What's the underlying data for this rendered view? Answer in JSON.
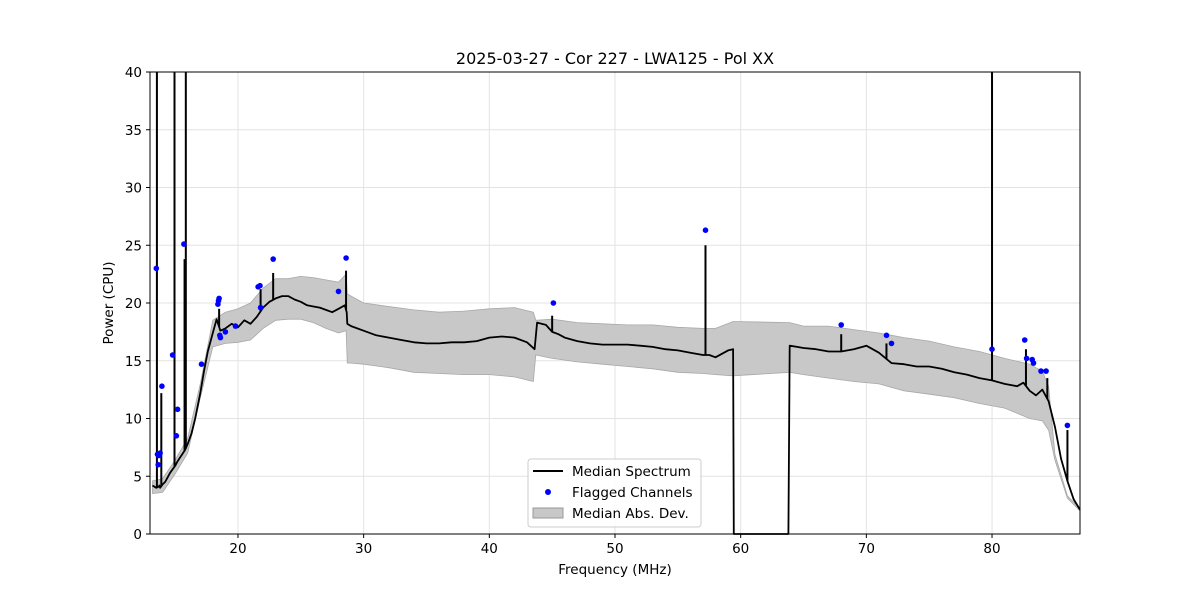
{
  "chart_data": {
    "type": "line",
    "title": "2025-03-27 - Cor 227 - LWA125 - Pol XX",
    "xlabel": "Frequency (MHz)",
    "ylabel": "Power (CPU)",
    "xlim": [
      13,
      87
    ],
    "ylim": [
      0,
      40
    ],
    "xticks": [
      20,
      30,
      40,
      50,
      60,
      70,
      80
    ],
    "yticks": [
      0,
      5,
      10,
      15,
      20,
      25,
      30,
      35,
      40
    ],
    "grid": true,
    "legend_position": "bottom-center",
    "legend": [
      {
        "label": "Median Spectrum",
        "kind": "line",
        "color": "#000000"
      },
      {
        "label": "Flagged Channels",
        "kind": "point",
        "color": "#0000ff"
      },
      {
        "label": "Median Abs. Dev.",
        "kind": "band",
        "color": "#c8c8c8"
      }
    ],
    "series": [
      {
        "name": "Median Spectrum",
        "x": [
          13.2,
          13.5,
          13.7,
          13.75,
          13.8,
          14.0,
          14.2,
          14.4,
          14.6,
          14.8,
          15.0,
          15.2,
          15.5,
          15.8,
          16.0,
          16.3,
          16.6,
          17.0,
          17.3,
          17.6,
          18.0,
          18.3,
          18.6,
          19.0,
          19.5,
          20.0,
          20.5,
          21.0,
          21.5,
          22.0,
          22.5,
          23.0,
          23.5,
          24.0,
          24.5,
          25.0,
          25.5,
          26.0,
          26.5,
          27.0,
          27.5,
          28.0,
          28.5,
          28.65,
          28.7,
          29.0,
          30.0,
          31.0,
          32.0,
          33.0,
          34.0,
          35.0,
          36.0,
          37.0,
          38.0,
          39.0,
          40.0,
          41.0,
          42.0,
          43.0,
          43.6,
          43.8,
          44.5,
          45.0,
          45.5,
          46.0,
          47.0,
          48.0,
          49.0,
          50.0,
          51.0,
          52.0,
          53.0,
          54.0,
          55.0,
          56.0,
          57.0,
          57.5,
          58.0,
          59.0,
          59.4,
          59.45,
          63.8,
          63.9,
          64.5,
          65.0,
          66.0,
          67.0,
          68.0,
          69.0,
          70.0,
          71.0,
          72.0,
          73.0,
          74.0,
          75.0,
          76.0,
          77.0,
          78.0,
          79.0,
          80.0,
          81.0,
          82.0,
          82.5,
          83.0,
          83.5,
          84.0,
          84.5,
          85.0,
          85.5,
          86.0,
          86.5,
          87.0
        ],
        "y": [
          4.2,
          4.0,
          4.1,
          4.2,
          4.0,
          4.3,
          4.5,
          4.9,
          5.3,
          5.6,
          5.9,
          6.3,
          6.8,
          7.3,
          7.8,
          8.7,
          10.0,
          12.2,
          14.1,
          15.8,
          17.4,
          18.6,
          17.6,
          17.8,
          18.2,
          17.9,
          18.5,
          18.2,
          18.8,
          19.6,
          20.1,
          20.4,
          20.6,
          20.6,
          20.3,
          20.1,
          19.8,
          19.7,
          19.6,
          19.4,
          19.2,
          19.5,
          19.8,
          19.2,
          18.2,
          18.0,
          17.6,
          17.2,
          17.0,
          16.8,
          16.6,
          16.5,
          16.5,
          16.6,
          16.6,
          16.7,
          17.0,
          17.1,
          17.0,
          16.6,
          16.0,
          18.3,
          18.1,
          17.5,
          17.3,
          17.0,
          16.7,
          16.5,
          16.4,
          16.4,
          16.4,
          16.3,
          16.2,
          16.0,
          15.9,
          15.7,
          15.5,
          15.5,
          15.3,
          15.9,
          16.0,
          0,
          0,
          16.3,
          16.2,
          16.1,
          16.0,
          15.8,
          15.8,
          16.0,
          16.3,
          15.7,
          14.8,
          14.7,
          14.5,
          14.5,
          14.3,
          14.0,
          13.8,
          13.5,
          13.3,
          13.0,
          12.8,
          13.1,
          12.4,
          12.0,
          12.5,
          11.5,
          9.3,
          6.5,
          4.6,
          3.0,
          2.1
        ]
      },
      {
        "name": "Median Abs. Dev.",
        "x": [
          13.2,
          14.0,
          15.0,
          16.0,
          17.0,
          18.0,
          19.0,
          20.0,
          21.0,
          22.0,
          23.0,
          24.0,
          25.0,
          26.0,
          27.0,
          28.0,
          28.6,
          28.7,
          29.0,
          30.0,
          32.0,
          34.0,
          36.0,
          38.0,
          40.0,
          42.0,
          43.5,
          43.7,
          45.0,
          47.0,
          49.0,
          51.0,
          53.0,
          55.0,
          57.0,
          58.0,
          59.4,
          63.9,
          65.0,
          67.0,
          69.0,
          71.0,
          73.0,
          75.0,
          77.0,
          79.0,
          81.0,
          83.0,
          84.0,
          84.5,
          85.0,
          86.0,
          87.0
        ],
        "upper": [
          4.6,
          4.8,
          6.4,
          8.3,
          13.0,
          18.5,
          19.2,
          19.5,
          20.0,
          21.3,
          22.1,
          22.1,
          22.3,
          22.2,
          22.0,
          21.8,
          22.5,
          20.8,
          20.6,
          20.0,
          19.7,
          19.4,
          19.2,
          19.3,
          19.5,
          19.6,
          19.2,
          18.5,
          18.6,
          18.3,
          18.2,
          18.1,
          18.1,
          17.9,
          17.8,
          17.8,
          18.4,
          18.3,
          18.0,
          18.0,
          17.7,
          17.4,
          17.0,
          16.7,
          16.2,
          15.8,
          15.2,
          14.7,
          14.1,
          12.8,
          6.9,
          3.3,
          2.2
        ],
        "lower": [
          3.5,
          3.6,
          5.2,
          7.0,
          11.8,
          16.2,
          16.5,
          16.6,
          16.8,
          17.8,
          18.5,
          18.6,
          18.6,
          18.3,
          17.8,
          17.4,
          17.6,
          14.8,
          14.8,
          14.7,
          14.4,
          14.0,
          13.9,
          13.8,
          13.8,
          13.6,
          13.2,
          15.5,
          15.2,
          14.9,
          14.7,
          14.5,
          14.3,
          14.0,
          13.9,
          13.8,
          13.7,
          14.0,
          13.8,
          13.5,
          13.2,
          13.0,
          12.4,
          12.1,
          11.8,
          11.3,
          10.9,
          10.0,
          9.8,
          9.0,
          6.4,
          3.1,
          2.0
        ]
      },
      {
        "name": "Spectral spikes",
        "peaks": [
          {
            "x": 13.55,
            "y": 40
          },
          {
            "x": 13.9,
            "y": 12.2
          },
          {
            "x": 14.95,
            "y": 40
          },
          {
            "x": 15.75,
            "y": 23.8
          },
          {
            "x": 15.85,
            "y": 40
          },
          {
            "x": 18.5,
            "y": 19.5
          },
          {
            "x": 21.8,
            "y": 21.2
          },
          {
            "x": 22.8,
            "y": 22.6
          },
          {
            "x": 28.6,
            "y": 22.8
          },
          {
            "x": 45.0,
            "y": 18.9
          },
          {
            "x": 57.2,
            "y": 25.0
          },
          {
            "x": 68.0,
            "y": 17.3
          },
          {
            "x": 71.6,
            "y": 16.5
          },
          {
            "x": 80.0,
            "y": 40
          },
          {
            "x": 82.7,
            "y": 16.0
          },
          {
            "x": 84.4,
            "y": 13.5
          },
          {
            "x": 86.0,
            "y": 9.0
          }
        ]
      },
      {
        "name": "Flagged Channels",
        "x": [
          13.5,
          13.6,
          13.65,
          13.7,
          13.8,
          13.95,
          14.8,
          15.1,
          15.2,
          15.7,
          17.1,
          18.4,
          18.45,
          18.5,
          18.55,
          18.6,
          19.0,
          19.8,
          21.6,
          21.75,
          21.8,
          22.8,
          28.0,
          28.6,
          45.1,
          57.2,
          68.0,
          71.6,
          72.0,
          80.0,
          82.6,
          82.75,
          83.2,
          83.3,
          83.9,
          84.3,
          86.0
        ],
        "y": [
          23.0,
          6.9,
          6.0,
          6.8,
          7.0,
          12.8,
          15.5,
          8.5,
          10.8,
          25.1,
          14.7,
          19.9,
          20.2,
          20.4,
          17.2,
          17.0,
          17.5,
          18.0,
          21.4,
          21.5,
          19.6,
          23.8,
          21.0,
          23.9,
          20.0,
          26.3,
          18.1,
          17.2,
          16.5,
          16.0,
          16.8,
          15.2,
          15.1,
          14.8,
          14.1,
          14.1,
          9.4
        ]
      }
    ]
  }
}
